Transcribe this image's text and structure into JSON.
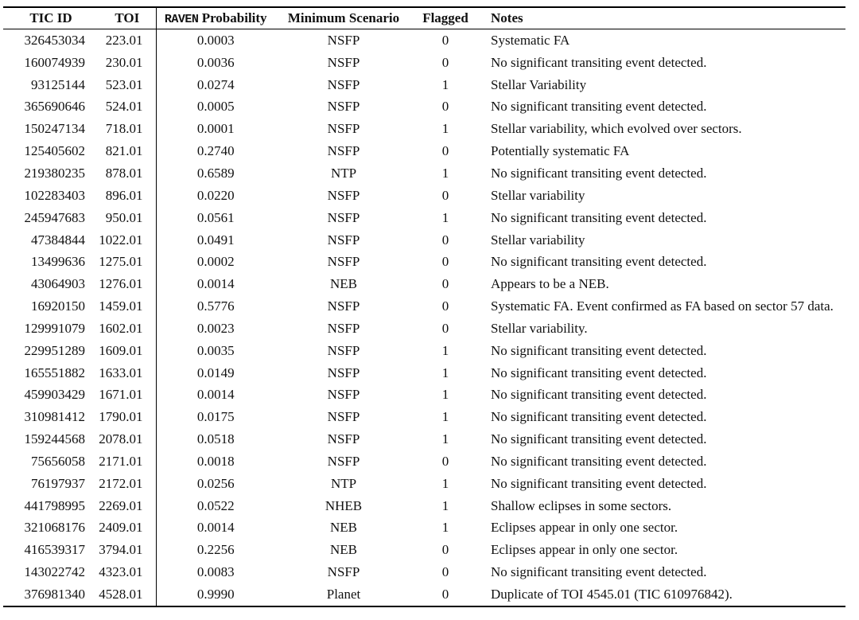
{
  "colors": {
    "background": "#ffffff",
    "text": "#111111",
    "rule": "#000000"
  },
  "table": {
    "header": {
      "tic_id": "TIC ID",
      "toi": "TOI",
      "raven": "RAVEN",
      "probability": "Probability",
      "minimum_scenario": "Minimum Scenario",
      "flagged": "Flagged",
      "notes": "Notes"
    },
    "rows": [
      {
        "tic_id": "326453034",
        "toi": "223.01",
        "probability": "0.0003",
        "scenario": "NSFP",
        "flagged": "0",
        "notes": "Systematic FA"
      },
      {
        "tic_id": "160074939",
        "toi": "230.01",
        "probability": "0.0036",
        "scenario": "NSFP",
        "flagged": "0",
        "notes": "No significant transiting event detected."
      },
      {
        "tic_id": "93125144",
        "toi": "523.01",
        "probability": "0.0274",
        "scenario": "NSFP",
        "flagged": "1",
        "notes": "Stellar Variability"
      },
      {
        "tic_id": "365690646",
        "toi": "524.01",
        "probability": "0.0005",
        "scenario": "NSFP",
        "flagged": "0",
        "notes": "No significant transiting event detected."
      },
      {
        "tic_id": "150247134",
        "toi": "718.01",
        "probability": "0.0001",
        "scenario": "NSFP",
        "flagged": "1",
        "notes": "Stellar variability, which evolved over sectors."
      },
      {
        "tic_id": "125405602",
        "toi": "821.01",
        "probability": "0.2740",
        "scenario": "NSFP",
        "flagged": "0",
        "notes": "Potentially systematic FA"
      },
      {
        "tic_id": "219380235",
        "toi": "878.01",
        "probability": "0.6589",
        "scenario": "NTP",
        "flagged": "1",
        "notes": "No significant transiting event detected."
      },
      {
        "tic_id": "102283403",
        "toi": "896.01",
        "probability": "0.0220",
        "scenario": "NSFP",
        "flagged": "0",
        "notes": "Stellar variability"
      },
      {
        "tic_id": "245947683",
        "toi": "950.01",
        "probability": "0.0561",
        "scenario": "NSFP",
        "flagged": "1",
        "notes": "No significant transiting event detected."
      },
      {
        "tic_id": "47384844",
        "toi": "1022.01",
        "probability": "0.0491",
        "scenario": "NSFP",
        "flagged": "0",
        "notes": "Stellar variability"
      },
      {
        "tic_id": "13499636",
        "toi": "1275.01",
        "probability": "0.0002",
        "scenario": "NSFP",
        "flagged": "0",
        "notes": "No significant transiting event detected."
      },
      {
        "tic_id": "43064903",
        "toi": "1276.01",
        "probability": "0.0014",
        "scenario": "NEB",
        "flagged": "0",
        "notes": "Appears to be a NEB."
      },
      {
        "tic_id": "16920150",
        "toi": "1459.01",
        "probability": "0.5776",
        "scenario": "NSFP",
        "flagged": "0",
        "notes": "Systematic FA. Event confirmed as FA based on sector 57 data."
      },
      {
        "tic_id": "129991079",
        "toi": "1602.01",
        "probability": "0.0023",
        "scenario": "NSFP",
        "flagged": "0",
        "notes": "Stellar variability."
      },
      {
        "tic_id": "229951289",
        "toi": "1609.01",
        "probability": "0.0035",
        "scenario": "NSFP",
        "flagged": "1",
        "notes": "No significant transiting event detected."
      },
      {
        "tic_id": "165551882",
        "toi": "1633.01",
        "probability": "0.0149",
        "scenario": "NSFP",
        "flagged": "1",
        "notes": "No significant transiting event detected."
      },
      {
        "tic_id": "459903429",
        "toi": "1671.01",
        "probability": "0.0014",
        "scenario": "NSFP",
        "flagged": "1",
        "notes": "No significant transiting event detected."
      },
      {
        "tic_id": "310981412",
        "toi": "1790.01",
        "probability": "0.0175",
        "scenario": "NSFP",
        "flagged": "1",
        "notes": "No significant transiting event detected."
      },
      {
        "tic_id": "159244568",
        "toi": "2078.01",
        "probability": "0.0518",
        "scenario": "NSFP",
        "flagged": "1",
        "notes": "No significant transiting event detected."
      },
      {
        "tic_id": "75656058",
        "toi": "2171.01",
        "probability": "0.0018",
        "scenario": "NSFP",
        "flagged": "0",
        "notes": "No significant transiting event detected."
      },
      {
        "tic_id": "76197937",
        "toi": "2172.01",
        "probability": "0.0256",
        "scenario": "NTP",
        "flagged": "1",
        "notes": "No significant transiting event detected."
      },
      {
        "tic_id": "441798995",
        "toi": "2269.01",
        "probability": "0.0522",
        "scenario": "NHEB",
        "flagged": "1",
        "notes": "Shallow eclipses in some sectors."
      },
      {
        "tic_id": "321068176",
        "toi": "2409.01",
        "probability": "0.0014",
        "scenario": "NEB",
        "flagged": "1",
        "notes": "Eclipses appear in only one sector."
      },
      {
        "tic_id": "416539317",
        "toi": "3794.01",
        "probability": "0.2256",
        "scenario": "NEB",
        "flagged": "0",
        "notes": "Eclipses appear in only one sector."
      },
      {
        "tic_id": "143022742",
        "toi": "4323.01",
        "probability": "0.0083",
        "scenario": "NSFP",
        "flagged": "0",
        "notes": "No significant transiting event detected."
      },
      {
        "tic_id": "376981340",
        "toi": "4528.01",
        "probability": "0.9990",
        "scenario": "Planet",
        "flagged": "0",
        "notes": "Duplicate of TOI 4545.01 (TIC 610976842)."
      }
    ]
  }
}
